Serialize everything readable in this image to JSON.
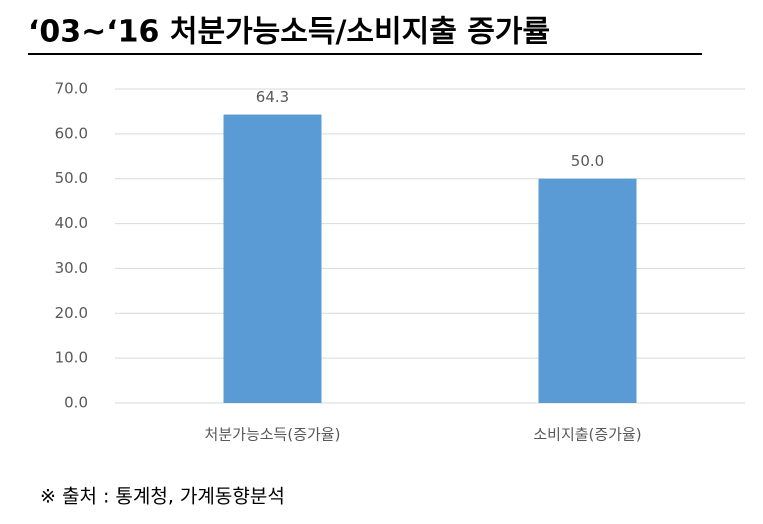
{
  "chart_data": {
    "type": "bar",
    "title": "‘03~‘16 처분가능소득/소비지출 증가률",
    "categories": [
      "처분가능소득(증가율)",
      "소비지출(증가율)"
    ],
    "values": [
      64.3,
      50.0
    ],
    "value_labels": [
      "64.3",
      "50.0"
    ],
    "color": "#5b9bd5",
    "ylim": [
      0,
      70
    ],
    "yticks": [
      {
        "value": 0,
        "label": "0.0"
      },
      {
        "value": 10,
        "label": "10.0"
      },
      {
        "value": 20,
        "label": "20.0"
      },
      {
        "value": 30,
        "label": "30.0"
      },
      {
        "value": 40,
        "label": "40.0"
      },
      {
        "value": 50,
        "label": "50.0"
      },
      {
        "value": 60,
        "label": "60.0"
      },
      {
        "value": 70,
        "label": "70.0"
      }
    ],
    "grid": true,
    "note": "※ 출처 : 통계청, 가계동향분석"
  }
}
